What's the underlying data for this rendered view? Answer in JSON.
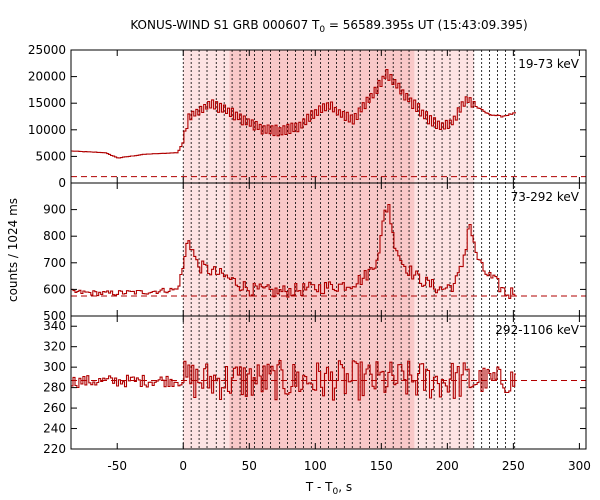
{
  "chart_data": {
    "type": "line",
    "title": "KONUS-WIND S1 GRB 000607 T",
    "title_sub": "0",
    "title_rest": " = 56589.395s UT (15:43:09.395)",
    "xlabel": "T - T",
    "xlabel_sub": "0",
    "xlabel_rest": ", s",
    "ylabel": "counts / 1024 ms",
    "xlim": [
      -85,
      305
    ],
    "xticks": [
      -50,
      0,
      50,
      100,
      150,
      200,
      250,
      300
    ],
    "xtick_labels": [
      "-50",
      "0",
      "50",
      "100",
      "150",
      "200",
      "250",
      "300"
    ],
    "colors": {
      "line": "#b00000",
      "shade_light": "#fde3e3",
      "shade_dark": "#f9c8c8",
      "dotted": "#000000"
    },
    "shaded_intervals": [
      {
        "from": 0,
        "to": 220,
        "shade": "light"
      },
      {
        "from": 35,
        "to": 175,
        "shade": "dark"
      }
    ],
    "dotted_lines": [
      0,
      6,
      12,
      18,
      25,
      31,
      37,
      43,
      48,
      54,
      60,
      66,
      73,
      79,
      85,
      91,
      97,
      104,
      110,
      116,
      122,
      128,
      134,
      141,
      147,
      153,
      159,
      165,
      171,
      178,
      184,
      190,
      196,
      202,
      209,
      215,
      220,
      226,
      232,
      238,
      244,
      251
    ],
    "panels": [
      {
        "label": "19-73 keV",
        "ylim": [
          0,
          25000
        ],
        "yticks": [
          0,
          5000,
          10000,
          15000,
          20000,
          25000
        ],
        "ytick_labels": [
          "0",
          "5000",
          "10000",
          "15000",
          "20000",
          "25000"
        ],
        "background_level": 1200,
        "profile": [
          [
            -85,
            6000
          ],
          [
            -60,
            5700
          ],
          [
            -50,
            4700
          ],
          [
            -30,
            5400
          ],
          [
            -5,
            5700
          ],
          [
            0,
            8000
          ],
          [
            3,
            12500
          ],
          [
            10,
            13500
          ],
          [
            20,
            14800
          ],
          [
            30,
            14000
          ],
          [
            40,
            12500
          ],
          [
            50,
            11200
          ],
          [
            60,
            10000
          ],
          [
            75,
            9800
          ],
          [
            90,
            11000
          ],
          [
            100,
            13500
          ],
          [
            110,
            14500
          ],
          [
            120,
            12800
          ],
          [
            128,
            12000
          ],
          [
            138,
            15000
          ],
          [
            148,
            18500
          ],
          [
            153,
            20800
          ],
          [
            158,
            19500
          ],
          [
            165,
            17000
          ],
          [
            175,
            14500
          ],
          [
            185,
            12000
          ],
          [
            195,
            10500
          ],
          [
            203,
            11500
          ],
          [
            210,
            14500
          ],
          [
            215,
            15800
          ],
          [
            220,
            14500
          ],
          [
            230,
            13000
          ],
          [
            240,
            12500
          ],
          [
            252,
            13200
          ]
        ],
        "noise": 500
      },
      {
        "label": "73-292 keV",
        "ylim": [
          500,
          1000
        ],
        "yticks": [
          500,
          600,
          700,
          800,
          900
        ],
        "ytick_labels": [
          "500",
          "600",
          "700",
          "800",
          "900"
        ],
        "background_level": 575,
        "profile": [
          [
            -85,
            590
          ],
          [
            -60,
            585
          ],
          [
            -30,
            590
          ],
          [
            -5,
            600
          ],
          [
            0,
            700
          ],
          [
            3,
            800
          ],
          [
            10,
            690
          ],
          [
            30,
            650
          ],
          [
            50,
            600
          ],
          [
            70,
            590
          ],
          [
            90,
            600
          ],
          [
            110,
            610
          ],
          [
            125,
            620
          ],
          [
            135,
            640
          ],
          [
            143,
            680
          ],
          [
            148,
            760
          ],
          [
            152,
            890
          ],
          [
            155,
            920
          ],
          [
            158,
            800
          ],
          [
            165,
            700
          ],
          [
            175,
            650
          ],
          [
            185,
            620
          ],
          [
            195,
            600
          ],
          [
            205,
            620
          ],
          [
            210,
            680
          ],
          [
            214,
            780
          ],
          [
            216,
            870
          ],
          [
            219,
            770
          ],
          [
            225,
            680
          ],
          [
            235,
            630
          ],
          [
            245,
            580
          ],
          [
            252,
            600
          ]
        ],
        "noise": 25
      },
      {
        "label": "292-1106 keV",
        "ylim": [
          220,
          350
        ],
        "yticks": [
          220,
          240,
          260,
          280,
          300,
          320,
          340
        ],
        "ytick_labels": [
          "220",
          "240",
          "260",
          "280",
          "300",
          "320",
          "340"
        ],
        "background_level": 287,
        "profile": [
          [
            -85,
            286
          ],
          [
            0,
            287
          ],
          [
            252,
            287
          ]
        ],
        "noise": 14
      }
    ]
  }
}
